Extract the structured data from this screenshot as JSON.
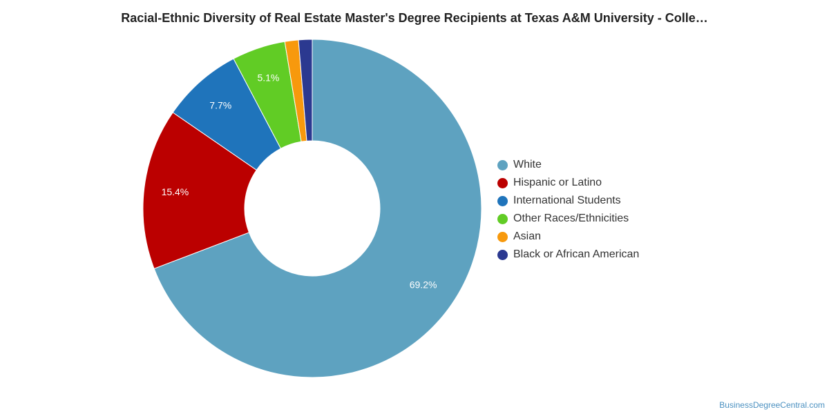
{
  "header": {
    "title": "Racial-Ethnic Diversity of Real Estate Master's Degree Recipients at Texas A&M University - Colle…"
  },
  "source": "BusinessDegreeCentral.com",
  "chart_data": {
    "type": "pie",
    "variant": "donut",
    "start": "top",
    "direction": "clockwise",
    "legend_position": "right",
    "series": [
      {
        "name": "White",
        "value": 69.2,
        "label": "69.2%",
        "color": "#5ea2c0"
      },
      {
        "name": "Hispanic or Latino",
        "value": 15.4,
        "label": "15.4%",
        "color": "#bb0000"
      },
      {
        "name": "International Students",
        "value": 7.7,
        "label": "7.7%",
        "color": "#1f74bb"
      },
      {
        "name": "Other Races/Ethnicities",
        "value": 5.1,
        "label": "5.1%",
        "color": "#61cc25"
      },
      {
        "name": "Asian",
        "value": 1.3,
        "label": "",
        "color": "#f7990d"
      },
      {
        "name": "Black or African American",
        "value": 1.3,
        "label": "",
        "color": "#2b3990"
      }
    ]
  }
}
